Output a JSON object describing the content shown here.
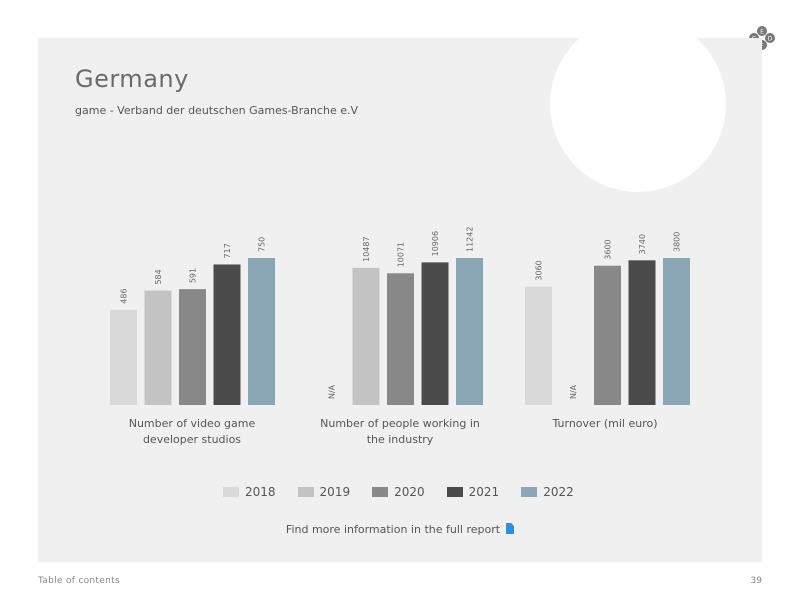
{
  "title": "Germany",
  "subtitle": "game - Verband der deutschen Games-Branche e.V",
  "logo": {
    "letters": [
      "E",
      "G",
      "D",
      "F"
    ]
  },
  "more_info": {
    "text": "Find more information in the full report",
    "icon": "document-icon"
  },
  "footer": {
    "toc": "Table of contents",
    "page": "39"
  },
  "chart_data": {
    "type": "bar",
    "years": [
      "2018",
      "2019",
      "2020",
      "2021",
      "2022"
    ],
    "colors": [
      "#d9d9d9",
      "#c3c3c3",
      "#888888",
      "#4b4b4b",
      "#8ba7b6"
    ],
    "groups": [
      {
        "label": "Number of video game developer studios",
        "values": [
          486,
          584,
          591,
          717,
          750
        ],
        "labels": [
          "486",
          "584",
          "591",
          "717",
          "750"
        ]
      },
      {
        "label": "Number of people working in the industry",
        "values": [
          null,
          10487,
          10071,
          10906,
          11242
        ],
        "labels": [
          "N/A",
          "10487",
          "10071",
          "10906",
          "11242"
        ]
      },
      {
        "label": "Turnover (mil euro)",
        "values": [
          3060,
          null,
          3600,
          3740,
          3800
        ],
        "labels": [
          "3060",
          "N/A",
          "3600",
          "3740",
          "3800"
        ]
      }
    ]
  }
}
